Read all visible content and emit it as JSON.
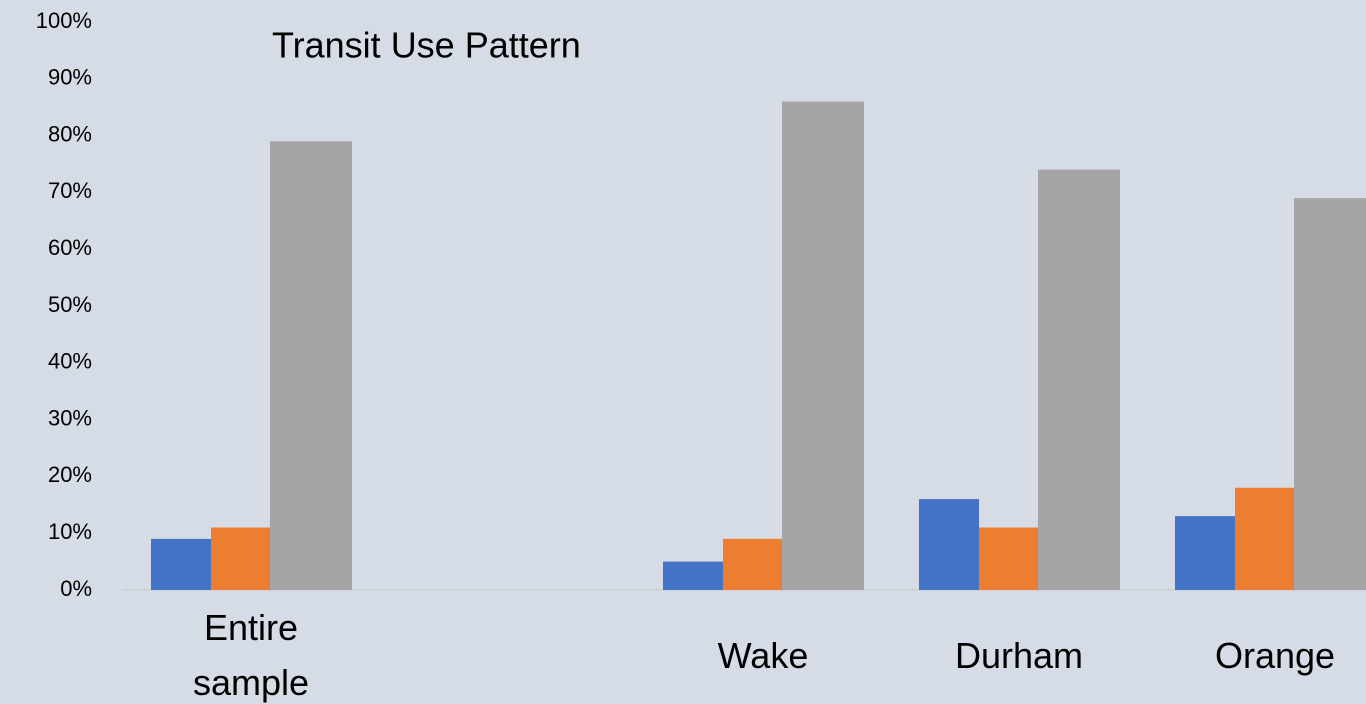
{
  "chart_data": {
    "type": "bar",
    "title": "Transit Use Pattern",
    "categories": [
      "Entire sample",
      null,
      "Wake",
      "Durham",
      "Orange"
    ],
    "series": [
      {
        "color": "#4472c4",
        "values": [
          9,
          null,
          5,
          16,
          13
        ]
      },
      {
        "color": "#ed7d31",
        "values": [
          11,
          null,
          9,
          11,
          18
        ]
      },
      {
        "color": "#a5a5a5",
        "values": [
          79,
          null,
          86,
          74,
          69
        ]
      }
    ],
    "ylim": [
      0,
      100
    ],
    "yticks": [
      {
        "value": 0,
        "label": "0%"
      },
      {
        "value": 10,
        "label": "10%"
      },
      {
        "value": 20,
        "label": "20%"
      },
      {
        "value": 30,
        "label": "30%"
      },
      {
        "value": 40,
        "label": "40%"
      },
      {
        "value": 50,
        "label": "50%"
      },
      {
        "value": 60,
        "label": "60%"
      },
      {
        "value": 70,
        "label": "70%"
      },
      {
        "value": 80,
        "label": "80%"
      },
      {
        "value": 90,
        "label": "90%"
      },
      {
        "value": 100,
        "label": "100%"
      }
    ],
    "grid": false
  }
}
